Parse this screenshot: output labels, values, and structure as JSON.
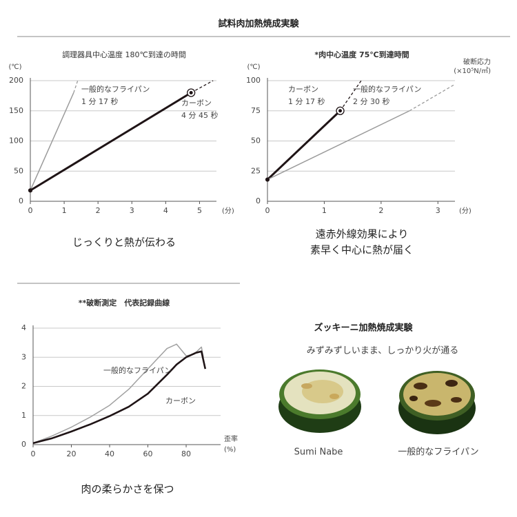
{
  "header": {
    "title": "試料肉加熱焼成実験"
  },
  "chart_data": [
    {
      "type": "line",
      "title": "調理器具中心温度 180℃到達の時間",
      "y_unit": "(℃)",
      "x_unit": "(分)",
      "target": 180,
      "xlim": [
        0,
        5.5
      ],
      "ylim": [
        0,
        200
      ],
      "xticks": [
        0,
        1,
        2,
        3,
        4,
        5
      ],
      "yticks": [
        0,
        50,
        100,
        150,
        200
      ],
      "grid": true,
      "series": [
        {
          "name": "一般的なフライパン",
          "color": "#9a9a9a",
          "x": [
            0,
            1.28,
            1.4
          ],
          "values": [
            18,
            180,
            200
          ],
          "annotation": "1 分 17 秒"
        },
        {
          "name": "カーボン",
          "color": "#1f1416",
          "x": [
            0,
            4.75,
            5.4
          ],
          "values": [
            18,
            180,
            200
          ],
          "annotation": "4 分 45 秒"
        }
      ],
      "caption": [
        "じっくりと熱が伝わる"
      ]
    },
    {
      "type": "line",
      "title": "*肉中心温度 75℃到達時間",
      "y_unit": "(℃)",
      "x_unit": "(分)",
      "y2_label": [
        "破断応力",
        "(×10⁵N/㎡)"
      ],
      "target": 75,
      "xlim": [
        0,
        3.3
      ],
      "ylim": [
        0,
        100
      ],
      "xticks": [
        0,
        1,
        2,
        3
      ],
      "yticks": [
        0,
        25,
        50,
        75,
        100
      ],
      "grid": true,
      "series": [
        {
          "name": "カーボン",
          "color": "#1f1416",
          "x": [
            0,
            1.28,
            1.65
          ],
          "values": [
            18,
            75,
            100
          ],
          "annotation": "1 分 17 秒"
        },
        {
          "name": "一般的なフライパン",
          "color": "#9a9a9a",
          "x": [
            0,
            2.5,
            3.3
          ],
          "values": [
            18,
            75,
            97
          ],
          "annotation": "2 分 30 秒"
        }
      ],
      "caption": [
        "遠赤外線効果により",
        "素早く中心に熱が届く"
      ]
    },
    {
      "type": "line",
      "title": "**破断測定　代表記録曲線",
      "x_label": "歪率",
      "x_unit": "(%)",
      "xlim": [
        0,
        98
      ],
      "ylim": [
        0,
        4
      ],
      "xticks": [
        0,
        20,
        40,
        60,
        80
      ],
      "yticks": [
        0,
        1,
        2,
        3,
        4
      ],
      "grid": true,
      "series": [
        {
          "name": "一般的なフライパン",
          "color": "#a0a0a0",
          "x": [
            0,
            10,
            20,
            30,
            40,
            50,
            60,
            70,
            75,
            80,
            84,
            88,
            89
          ],
          "values": [
            0.05,
            0.3,
            0.6,
            0.95,
            1.35,
            1.9,
            2.6,
            3.3,
            3.45,
            3.05,
            3.1,
            3.35,
            3.0
          ]
        },
        {
          "name": "カーボン",
          "color": "#1f1416",
          "x": [
            0,
            10,
            20,
            30,
            40,
            50,
            60,
            70,
            75,
            80,
            85,
            88,
            89,
            90
          ],
          "values": [
            0.05,
            0.22,
            0.45,
            0.7,
            0.98,
            1.3,
            1.75,
            2.4,
            2.75,
            3.0,
            3.15,
            3.2,
            2.9,
            2.6
          ]
        }
      ],
      "caption": [
        "肉の柔らかさを保つ"
      ]
    }
  ],
  "zucchini": {
    "title": "ズッキーニ加熱焼成実験",
    "subtitle": "みずみずしいまま、しっかり火が通る",
    "labels": [
      "Sumi Nabe",
      "一般的なフライパン"
    ]
  }
}
